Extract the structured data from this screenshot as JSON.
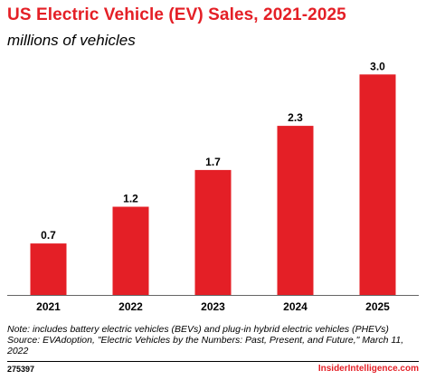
{
  "title": "US Electric Vehicle (EV) Sales, 2021-2025",
  "subtitle": "millions of vehicles",
  "notes": {
    "note": "Note: includes battery electric vehicles (BEVs) and plug-in hybrid electric vehicles (PHEVs)",
    "source_line1": "Source: EVAdoption, \"Electric Vehicles by the Numbers: Past, Present, and Future,\" March 11,",
    "source_line2": "2022"
  },
  "footer": {
    "chart_id": "275397",
    "brand": "InsiderIntelligence.com"
  },
  "colors": {
    "bar": "#e41f26",
    "title": "#e41f26",
    "axis": "#666666"
  },
  "chart_data": {
    "type": "bar",
    "categories": [
      "2021",
      "2022",
      "2023",
      "2024",
      "2025"
    ],
    "values": [
      0.7,
      1.2,
      1.7,
      2.3,
      3.0
    ],
    "value_labels": [
      "0.7",
      "1.2",
      "1.7",
      "2.3",
      "3.0"
    ],
    "title": "US Electric Vehicle (EV) Sales, 2021-2025",
    "subtitle": "millions of vehicles",
    "xlabel": "",
    "ylabel": "",
    "ylim": [
      0,
      3.2
    ],
    "grid": false,
    "legend": "none"
  }
}
